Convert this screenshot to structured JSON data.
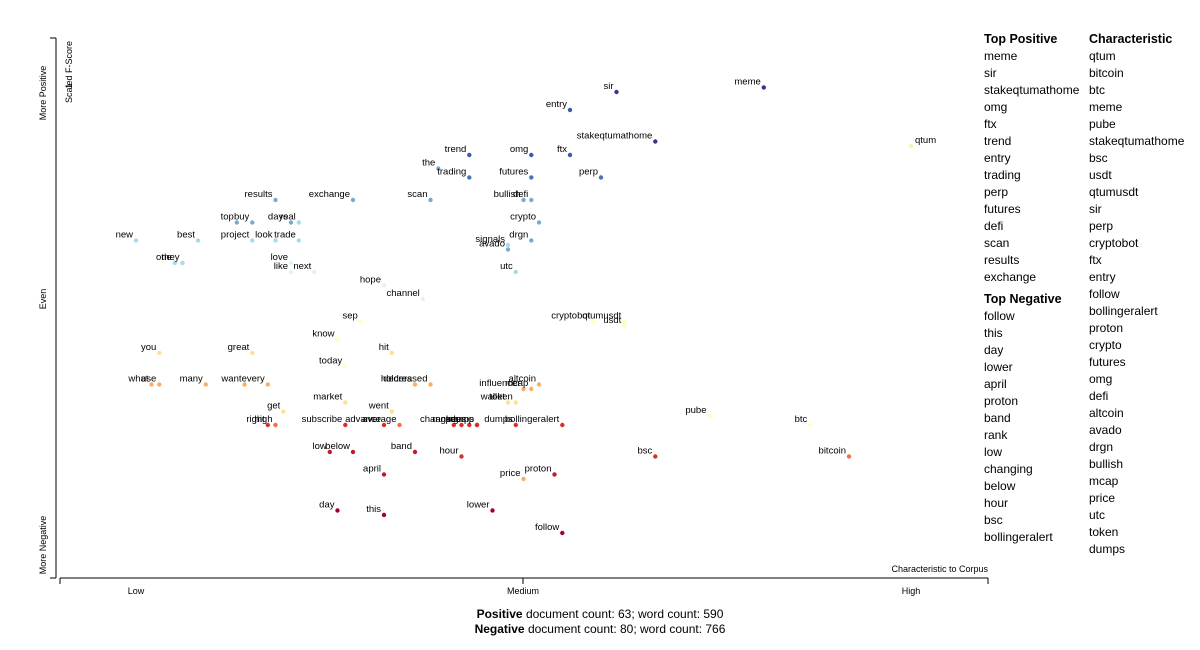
{
  "chart_data": {
    "type": "scatter",
    "x_axis": {
      "label": "Characteristic to Corpus",
      "ticks": [
        "Low",
        "Medium",
        "High"
      ]
    },
    "y_axis": {
      "label": "Scaled F-Score",
      "top_tick": "1",
      "ticks": [
        "More Positive",
        "Even",
        "More Negative"
      ]
    },
    "points": [
      {
        "term": "meme",
        "x": 0.81,
        "y": 0.99,
        "color": "#313695"
      },
      {
        "term": "sir",
        "x": 0.62,
        "y": 0.98,
        "color": "#313695"
      },
      {
        "term": "entry",
        "x": 0.56,
        "y": 0.94,
        "color": "#3a5aa8"
      },
      {
        "term": "qtum",
        "x": 1.0,
        "y": 0.86,
        "color": "#fdf0b0"
      },
      {
        "term": "stakeqtumathome",
        "x": 0.67,
        "y": 0.87,
        "color": "#313695"
      },
      {
        "term": "trend",
        "x": 0.43,
        "y": 0.84,
        "color": "#3a5aa8"
      },
      {
        "term": "omg",
        "x": 0.51,
        "y": 0.84,
        "color": "#3a5aa8"
      },
      {
        "term": "ftx",
        "x": 0.56,
        "y": 0.84,
        "color": "#3a5aa8"
      },
      {
        "term": "the",
        "x": 0.39,
        "y": 0.81,
        "color": "#74add1"
      },
      {
        "term": "futures",
        "x": 0.51,
        "y": 0.79,
        "color": "#4575b4"
      },
      {
        "term": "perp",
        "x": 0.6,
        "y": 0.79,
        "color": "#4575b4"
      },
      {
        "term": "trading",
        "x": 0.43,
        "y": 0.79,
        "color": "#4575b4"
      },
      {
        "term": "results",
        "x": 0.18,
        "y": 0.74,
        "color": "#74add1"
      },
      {
        "term": "exchange",
        "x": 0.28,
        "y": 0.74,
        "color": "#74add1"
      },
      {
        "term": "scan",
        "x": 0.38,
        "y": 0.74,
        "color": "#74add1"
      },
      {
        "term": "bullish",
        "x": 0.5,
        "y": 0.74,
        "color": "#74add1"
      },
      {
        "term": "defi",
        "x": 0.51,
        "y": 0.74,
        "color": "#74add1"
      },
      {
        "term": "buy",
        "x": 0.15,
        "y": 0.69,
        "color": "#74add1"
      },
      {
        "term": "days",
        "x": 0.2,
        "y": 0.69,
        "color": "#74add1"
      },
      {
        "term": "top",
        "x": 0.13,
        "y": 0.69,
        "color": "#74add1"
      },
      {
        "term": "real",
        "x": 0.21,
        "y": 0.69,
        "color": "#abd9e9"
      },
      {
        "term": "crypto",
        "x": 0.52,
        "y": 0.69,
        "color": "#74add1"
      },
      {
        "term": "new",
        "x": 0.0,
        "y": 0.65,
        "color": "#abd9e9"
      },
      {
        "term": "best",
        "x": 0.08,
        "y": 0.65,
        "color": "#abd9e9"
      },
      {
        "term": "project",
        "x": 0.15,
        "y": 0.65,
        "color": "#abd9e9"
      },
      {
        "term": "look",
        "x": 0.18,
        "y": 0.65,
        "color": "#abd9e9"
      },
      {
        "term": "trade",
        "x": 0.21,
        "y": 0.65,
        "color": "#abd9e9"
      },
      {
        "term": "signals",
        "x": 0.48,
        "y": 0.64,
        "color": "#abd9e9"
      },
      {
        "term": "drgn",
        "x": 0.51,
        "y": 0.65,
        "color": "#74add1"
      },
      {
        "term": "avado",
        "x": 0.48,
        "y": 0.63,
        "color": "#74add1"
      },
      {
        "term": "one",
        "x": 0.05,
        "y": 0.6,
        "color": "#abd9e9"
      },
      {
        "term": "they",
        "x": 0.06,
        "y": 0.6,
        "color": "#abd9e9"
      },
      {
        "term": "love",
        "x": 0.2,
        "y": 0.6,
        "color": "#e0f3f8"
      },
      {
        "term": "utc",
        "x": 0.49,
        "y": 0.58,
        "color": "#abd9e9"
      },
      {
        "term": "like",
        "x": 0.2,
        "y": 0.58,
        "color": "#e0f3f8"
      },
      {
        "term": "next",
        "x": 0.23,
        "y": 0.58,
        "color": "#e0f3f8"
      },
      {
        "term": "hope",
        "x": 0.32,
        "y": 0.55,
        "color": "#e0f3f8"
      },
      {
        "term": "channel",
        "x": 0.37,
        "y": 0.52,
        "color": "#e0f3f8"
      },
      {
        "term": "cryptobot",
        "x": 0.59,
        "y": 0.47,
        "color": "#ffffbf"
      },
      {
        "term": "qtumusdt",
        "x": 0.63,
        "y": 0.47,
        "color": "#ffffbf"
      },
      {
        "term": "usdt",
        "x": 0.63,
        "y": 0.46,
        "color": "#ffffbf"
      },
      {
        "term": "sep",
        "x": 0.29,
        "y": 0.47,
        "color": "#ffffbf"
      },
      {
        "term": "know",
        "x": 0.26,
        "y": 0.43,
        "color": "#ffffbf"
      },
      {
        "term": "you",
        "x": 0.03,
        "y": 0.4,
        "color": "#fee090"
      },
      {
        "term": "great",
        "x": 0.15,
        "y": 0.4,
        "color": "#fee090"
      },
      {
        "term": "hit",
        "x": 0.33,
        "y": 0.4,
        "color": "#fee090"
      },
      {
        "term": "today",
        "x": 0.27,
        "y": 0.37,
        "color": "#ffffbf"
      },
      {
        "term": "influencer",
        "x": 0.5,
        "y": 0.32,
        "color": "#fdae61"
      },
      {
        "term": "mcap",
        "x": 0.51,
        "y": 0.32,
        "color": "#fdae61"
      },
      {
        "term": "what",
        "x": 0.02,
        "y": 0.33,
        "color": "#fdae61"
      },
      {
        "term": "use",
        "x": 0.03,
        "y": 0.33,
        "color": "#fdae61"
      },
      {
        "term": "many",
        "x": 0.09,
        "y": 0.33,
        "color": "#fdae61"
      },
      {
        "term": "want",
        "x": 0.14,
        "y": 0.33,
        "color": "#fdae61"
      },
      {
        "term": "every",
        "x": 0.17,
        "y": 0.33,
        "color": "#fdae61"
      },
      {
        "term": "holders",
        "x": 0.36,
        "y": 0.33,
        "color": "#fdae61"
      },
      {
        "term": "decreased",
        "x": 0.38,
        "y": 0.33,
        "color": "#fdae61"
      },
      {
        "term": "altcoin",
        "x": 0.52,
        "y": 0.33,
        "color": "#fdae61"
      },
      {
        "term": "market",
        "x": 0.27,
        "y": 0.29,
        "color": "#fee090"
      },
      {
        "term": "wallet",
        "x": 0.48,
        "y": 0.29,
        "color": "#fee090"
      },
      {
        "term": "token",
        "x": 0.49,
        "y": 0.29,
        "color": "#fee090"
      },
      {
        "term": "went",
        "x": 0.33,
        "y": 0.27,
        "color": "#fee090"
      },
      {
        "term": "get",
        "x": 0.19,
        "y": 0.27,
        "color": "#fee090"
      },
      {
        "term": "pumps",
        "x": 0.44,
        "y": 0.24,
        "color": "#d73027"
      },
      {
        "term": "sees",
        "x": 0.43,
        "y": 0.24,
        "color": "#d73027"
      },
      {
        "term": "dump",
        "x": 0.44,
        "y": 0.24,
        "color": "#d73027"
      },
      {
        "term": "pube",
        "x": 0.74,
        "y": 0.26,
        "color": "#ffffbf"
      },
      {
        "term": "btc",
        "x": 0.87,
        "y": 0.24,
        "color": "#ffffbf"
      },
      {
        "term": "right",
        "x": 0.17,
        "y": 0.24,
        "color": "#d73027"
      },
      {
        "term": "high",
        "x": 0.18,
        "y": 0.24,
        "color": "#f46d43"
      },
      {
        "term": "subscribe",
        "x": 0.27,
        "y": 0.24,
        "color": "#d73027"
      },
      {
        "term": "advance",
        "x": 0.32,
        "y": 0.24,
        "color": "#d73027"
      },
      {
        "term": "average",
        "x": 0.34,
        "y": 0.24,
        "color": "#f46d43"
      },
      {
        "term": "rank",
        "x": 0.41,
        "y": 0.24,
        "color": "#d73027"
      },
      {
        "term": "changing",
        "x": 0.42,
        "y": 0.24,
        "color": "#d73027"
      },
      {
        "term": "dumps",
        "x": 0.49,
        "y": 0.24,
        "color": "#d73027"
      },
      {
        "term": "bollingeralert",
        "x": 0.55,
        "y": 0.24,
        "color": "#d73027"
      },
      {
        "term": "bitcoin",
        "x": 0.92,
        "y": 0.17,
        "color": "#f46d43"
      },
      {
        "term": "low",
        "x": 0.25,
        "y": 0.18,
        "color": "#c21a2a"
      },
      {
        "term": "below",
        "x": 0.28,
        "y": 0.18,
        "color": "#c21a2a"
      },
      {
        "term": "band",
        "x": 0.36,
        "y": 0.18,
        "color": "#c21a2a"
      },
      {
        "term": "hour",
        "x": 0.42,
        "y": 0.17,
        "color": "#d73027"
      },
      {
        "term": "bsc",
        "x": 0.67,
        "y": 0.17,
        "color": "#d73027"
      },
      {
        "term": "april",
        "x": 0.32,
        "y": 0.13,
        "color": "#c21a2a"
      },
      {
        "term": "proton",
        "x": 0.54,
        "y": 0.13,
        "color": "#c21a2a"
      },
      {
        "term": "price",
        "x": 0.5,
        "y": 0.12,
        "color": "#fdae61"
      },
      {
        "term": "day",
        "x": 0.26,
        "y": 0.05,
        "color": "#a50026"
      },
      {
        "term": "this",
        "x": 0.32,
        "y": 0.04,
        "color": "#a50026"
      },
      {
        "term": "lower",
        "x": 0.46,
        "y": 0.05,
        "color": "#a50026"
      },
      {
        "term": "follow",
        "x": 0.55,
        "y": 0.0,
        "color": "#a50026"
      }
    ]
  },
  "top_positive": {
    "title": "Top Positive",
    "items": [
      "meme",
      "sir",
      "stakeqtumathome",
      "omg",
      "ftx",
      "trend",
      "entry",
      "trading",
      "perp",
      "futures",
      "defi",
      "scan",
      "results",
      "exchange"
    ]
  },
  "top_negative": {
    "title": "Top Negative",
    "items": [
      "follow",
      "this",
      "day",
      "lower",
      "april",
      "proton",
      "band",
      "rank",
      "low",
      "changing",
      "below",
      "hour",
      "bsc",
      "bollingeralert"
    ]
  },
  "characteristic": {
    "title": "Characteristic",
    "items": [
      "qtum",
      "bitcoin",
      "btc",
      "meme",
      "pube",
      "stakeqtumathome",
      "bsc",
      "usdt",
      "qtumusdt",
      "sir",
      "perp",
      "cryptobot",
      "ftx",
      "entry",
      "follow",
      "bollingeralert",
      "proton",
      "crypto",
      "futures",
      "omg",
      "defi",
      "altcoin",
      "avado",
      "drgn",
      "bullish",
      "mcap",
      "price",
      "utc",
      "token",
      "dumps"
    ]
  },
  "footer": {
    "positive_label": "Positive",
    "positive_text": " document count: 63; word count: 590",
    "negative_label": "Negative",
    "negative_text": " document count: 80; word count: 766"
  }
}
